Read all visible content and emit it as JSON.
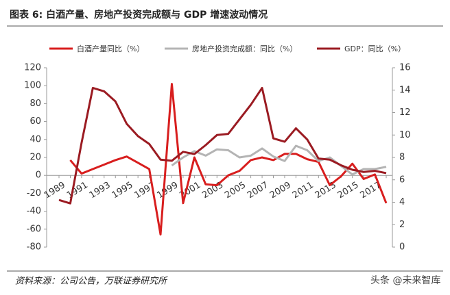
{
  "chart_data": {
    "type": "line",
    "title": "图表 6:   白酒产量、房地产投资完成额与 GDP 增速波动情况",
    "source": "资料来源：公司公告，万联证券研究所",
    "watermark": "头条 @未来智库",
    "categories": [
      "1989",
      null,
      "1991",
      null,
      "1993",
      null,
      "1995",
      null,
      "1997",
      null,
      "1999",
      null,
      "2001",
      null,
      "2003",
      null,
      "2005",
      null,
      "2007",
      null,
      "2009",
      null,
      "2011",
      null,
      "2013",
      null,
      "2015",
      null,
      "2017",
      null
    ],
    "series": [
      {
        "name": "白酒产量同比（%）",
        "color": "#d81e1e",
        "values": [
          null,
          17,
          2,
          7,
          12,
          17,
          21,
          14,
          7,
          -66,
          102,
          -31,
          20,
          -10,
          -11,
          0,
          5,
          17,
          20,
          17,
          24,
          24,
          18,
          15,
          -11,
          -1,
          13,
          -4,
          1,
          -31
        ]
      },
      {
        "name": "房地产投资完成额：同比（%）",
        "color": "#b4b4b4",
        "values": [
          null,
          null,
          null,
          null,
          null,
          null,
          null,
          null,
          null,
          null,
          11,
          20,
          27,
          22,
          29,
          28,
          20,
          22,
          30,
          21,
          16,
          33,
          28,
          16,
          20,
          10.5,
          1,
          7,
          7,
          9.5
        ]
      },
      {
        "name": "GDP：同比（%）",
        "color": "#9b1b22",
        "axis": "y2",
        "values": [
          4.2,
          3.9,
          9.3,
          14.2,
          13.9,
          13.0,
          11.0,
          9.9,
          9.2,
          7.8,
          7.7,
          8.5,
          8.3,
          9.1,
          10.0,
          10.1,
          11.4,
          12.7,
          14.2,
          9.7,
          9.4,
          10.6,
          9.6,
          7.9,
          7.8,
          7.3,
          6.9,
          6.7,
          6.8,
          6.6
        ]
      }
    ],
    "ylim": [
      -80,
      120
    ],
    "yticks": [
      -80,
      -60,
      -40,
      -20,
      0,
      20,
      40,
      60,
      80,
      100,
      120
    ],
    "y2lim": [
      0,
      16
    ],
    "y2ticks": [
      0,
      2,
      4,
      6,
      8,
      10,
      12,
      14,
      16
    ]
  }
}
